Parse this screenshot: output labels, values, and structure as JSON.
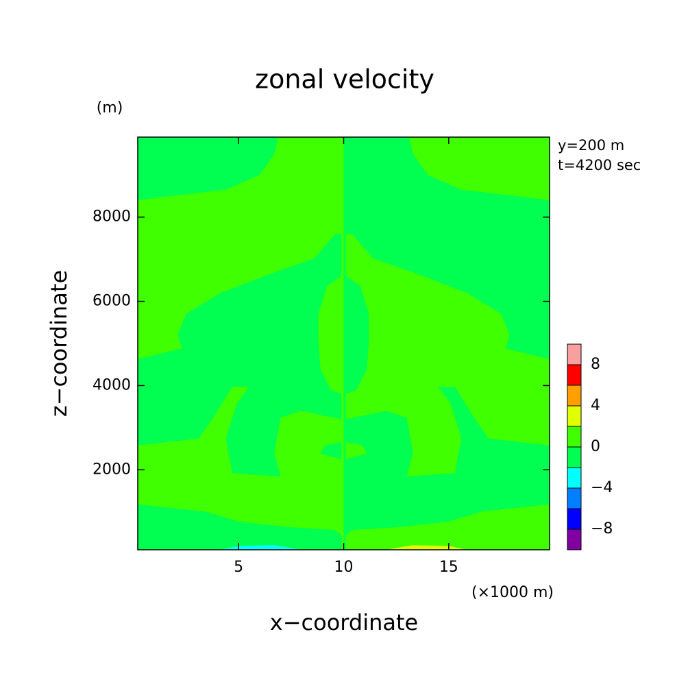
{
  "chart_data": {
    "type": "contour",
    "title": "zonal velocity",
    "y_unit": "(m)",
    "x_unit": "(×1000 m)",
    "annotations": [
      "y=200 m",
      "t=4200 sec"
    ],
    "x_label": "x−coordinate",
    "y_label": "z−coordinate",
    "xlim": [
      0.2,
      19.8
    ],
    "ylim": [
      100,
      9900
    ],
    "xticks": [
      5,
      10,
      15
    ],
    "yticks": [
      2000,
      4000,
      6000,
      8000
    ],
    "levels": [
      -10,
      -8,
      -6,
      -4,
      -2,
      0,
      2,
      4,
      6,
      8,
      10
    ],
    "colors": [
      "#8000a0",
      "#0000ff",
      "#0080ff",
      "#00ffff",
      "#00ff50",
      "#40ff00",
      "#e0ff00",
      "#ffa000",
      "#ff0000",
      "#f8a0a0"
    ],
    "cbticks": [
      {
        "value": -8,
        "label": "−8"
      },
      {
        "value": -4,
        "label": "−4"
      },
      0,
      4,
      8
    ],
    "regions": [
      {
        "band": 5,
        "x": [
          0.2,
          10,
          10,
          0.2
        ],
        "z": [
          100,
          100,
          9900,
          9900
        ]
      },
      {
        "band": 4,
        "x": [
          10,
          19.8,
          19.8,
          10
        ],
        "z": [
          100,
          100,
          9900,
          9900
        ]
      },
      {
        "band": 4,
        "x": [
          0.2,
          2.3,
          2.1,
          2.5,
          4.1,
          6.7,
          8.6,
          9.6,
          9.9,
          9.9,
          9.2,
          8.8,
          8.8,
          8.9,
          9.4,
          9.9,
          9.9,
          8.0,
          7.0,
          6.7,
          7.0,
          4.7,
          4.4,
          4.9,
          5.5,
          4.7,
          3.8,
          3.1,
          0.2
        ],
        "z": [
          4630,
          4880,
          5210,
          5700,
          6190,
          6690,
          7020,
          7600,
          7600,
          6610,
          6360,
          5700,
          5040,
          4380,
          3890,
          3810,
          3200,
          3400,
          3240,
          2410,
          1840,
          1920,
          2740,
          3560,
          3970,
          3970,
          3240,
          2740,
          2580
        ]
      },
      {
        "band": 5,
        "x": [
          19.8,
          17.7,
          17.9,
          17.5,
          15.9,
          13.3,
          11.4,
          10.4,
          10.1,
          10.1,
          10.8,
          11.2,
          11.2,
          11.1,
          10.6,
          10.1,
          10.1,
          12.0,
          13.0,
          13.3,
          13.0,
          15.3,
          15.6,
          15.1,
          14.5,
          15.3,
          16.2,
          16.9,
          19.8
        ],
        "z": [
          4630,
          4880,
          5210,
          5700,
          6190,
          6690,
          7020,
          7600,
          7600,
          6610,
          6360,
          5700,
          5040,
          4380,
          3890,
          3810,
          3200,
          3400,
          3240,
          2410,
          1840,
          1920,
          2740,
          3560,
          3970,
          3970,
          3240,
          2740,
          2580
        ]
      },
      {
        "band": 4,
        "x": [
          0.2,
          6.9,
          6.7,
          6.0,
          4.4,
          1.8,
          0.2
        ],
        "z": [
          9900,
          9900,
          9500,
          9000,
          8650,
          8500,
          8400
        ]
      },
      {
        "band": 5,
        "x": [
          19.8,
          13.1,
          13.3,
          14.0,
          15.6,
          18.2,
          19.8
        ],
        "z": [
          9900,
          9900,
          9500,
          9000,
          8650,
          8500,
          8400
        ]
      },
      {
        "band": 4,
        "x": [
          7.5,
          8.0,
          7.6,
          7.2
        ],
        "z": [
          5450,
          5400,
          5040,
          5090
        ]
      },
      {
        "band": 5,
        "x": [
          12.5,
          12.0,
          12.4,
          12.8
        ],
        "z": [
          5450,
          5400,
          5040,
          5090
        ]
      },
      {
        "band": 4,
        "x": [
          9.9,
          9.1,
          8.9,
          9.9
        ],
        "z": [
          2660,
          2580,
          2380,
          2250
        ]
      },
      {
        "band": 5,
        "x": [
          10.1,
          10.9,
          11.1,
          10.1
        ],
        "z": [
          2660,
          2580,
          2380,
          2250
        ]
      },
      {
        "band": 4,
        "x": [
          0.2,
          3.4,
          5.0,
          7.3,
          9.6,
          9.9,
          9.9,
          0.2
        ],
        "z": [
          1180,
          1010,
          770,
          640,
          570,
          440,
          100,
          100
        ]
      },
      {
        "band": 5,
        "x": [
          19.8,
          16.6,
          15.0,
          12.7,
          10.4,
          10.1,
          10.1,
          19.8
        ],
        "z": [
          1180,
          1010,
          770,
          640,
          570,
          440,
          100,
          100
        ]
      },
      {
        "band": 3,
        "x": [
          4.1,
          5.0,
          6.7,
          8.0
        ],
        "z": [
          100,
          190,
          210,
          100
        ]
      },
      {
        "band": 6,
        "x": [
          15.9,
          15.0,
          13.3,
          12.0
        ],
        "z": [
          100,
          190,
          210,
          100
        ]
      }
    ]
  }
}
